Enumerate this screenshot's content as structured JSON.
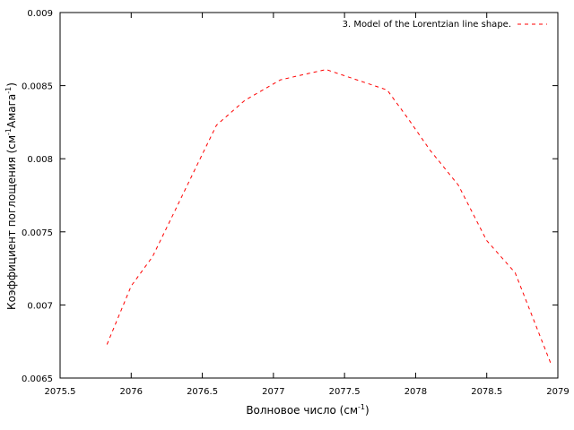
{
  "chart_data": {
    "type": "line",
    "xlabel": "Волновое число (см",
    "xlabel_sup": "-1",
    "xlabel_end": ")",
    "ylabel_parts": [
      "Коэффициент поглощения (см",
      "-1",
      "Амага",
      "-1",
      ")"
    ],
    "xlim": [
      2075.5,
      2079
    ],
    "ylim": [
      0.0065,
      0.009
    ],
    "xticks": [
      2075.5,
      2076,
      2076.5,
      2077,
      2077.5,
      2078,
      2078.5,
      2079
    ],
    "xtick_labels": [
      "2075.5",
      "2076",
      "2076.5",
      "2077",
      "2077.5",
      "2078",
      "2078.5",
      "2079"
    ],
    "yticks": [
      0.0065,
      0.007,
      0.0075,
      0.008,
      0.0085,
      0.009
    ],
    "ytick_labels": [
      "0.0065",
      "0.007",
      "0.0075",
      "0.008",
      "0.0085",
      "0.009"
    ],
    "grid": false,
    "legend_position": "top-right",
    "series": [
      {
        "name": "3. Model of the Lorentzian line shape.",
        "color": "#ff0000",
        "line_style": "dashed",
        "x": [
          2075.83,
          2076.0,
          2076.15,
          2076.3,
          2076.45,
          2076.6,
          2076.8,
          2077.05,
          2077.37,
          2077.8,
          2077.95,
          2078.1,
          2078.3,
          2078.5,
          2078.7,
          2078.95
        ],
        "y": [
          0.00673,
          0.00713,
          0.00733,
          0.00763,
          0.00793,
          0.00823,
          0.0084,
          0.00854,
          0.00861,
          0.00847,
          0.00827,
          0.00806,
          0.00782,
          0.00744,
          0.00722,
          0.0066
        ]
      }
    ]
  }
}
